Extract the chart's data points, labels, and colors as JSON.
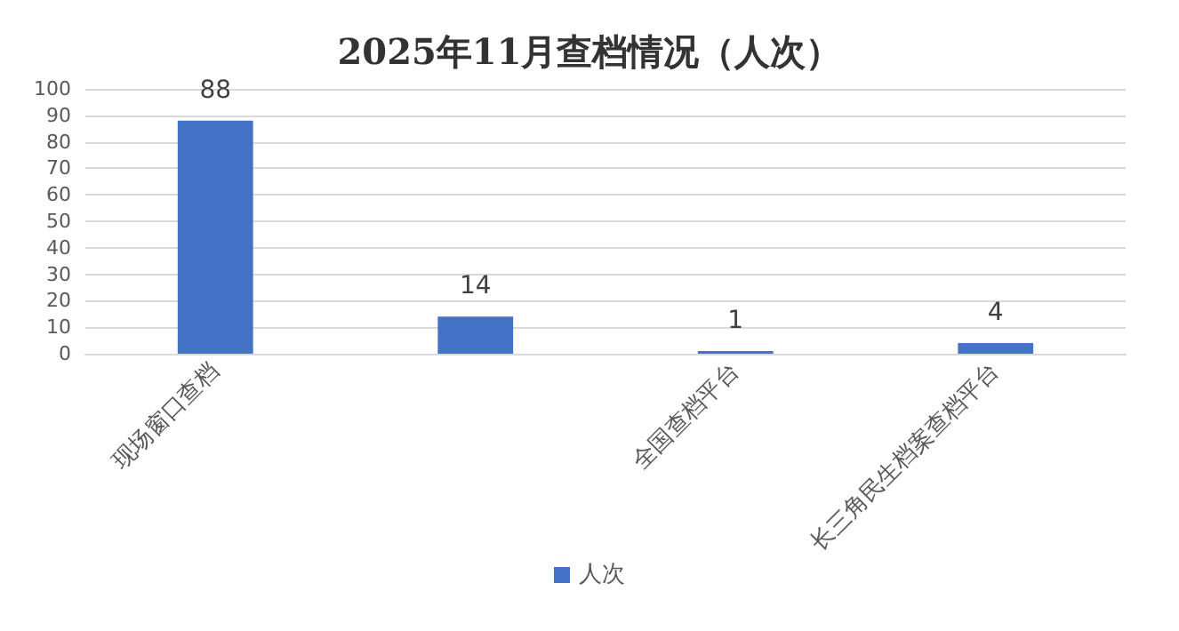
{
  "chart_data": {
    "type": "bar",
    "title": "2025年11月查档情况（人次）",
    "categories": [
      "现场窗口查档",
      null,
      "全国查档平台",
      "长三角民生档案查档平台"
    ],
    "series": [
      {
        "name": "人次",
        "color": "#4472c4",
        "values": [
          88,
          14,
          1,
          4
        ]
      }
    ],
    "ylim": [
      0,
      100
    ],
    "yticks": [
      0,
      10,
      20,
      30,
      40,
      50,
      60,
      70,
      80,
      90,
      100
    ],
    "grid": "y",
    "legend": "bottom",
    "data_labels": true
  }
}
